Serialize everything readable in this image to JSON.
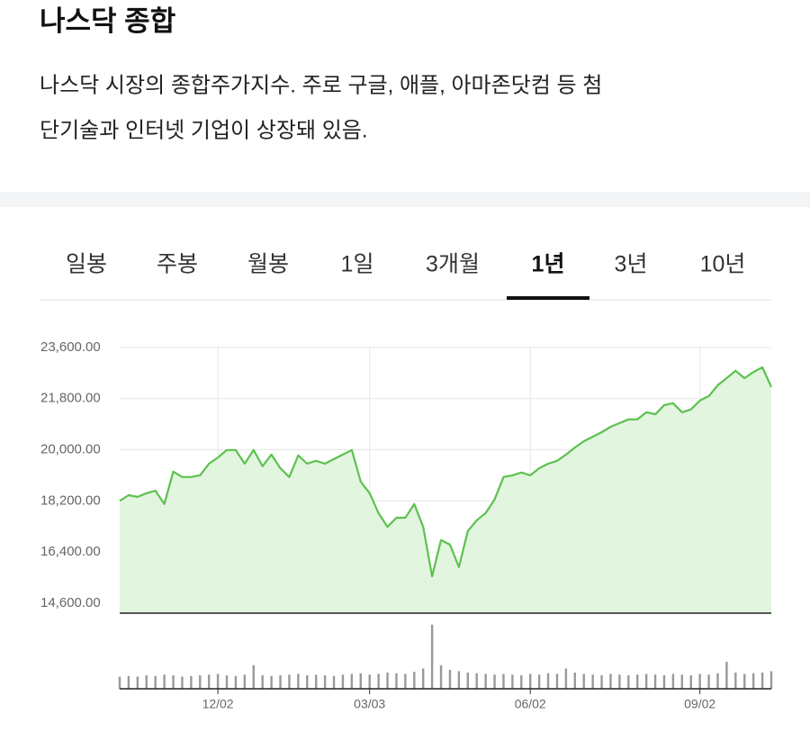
{
  "header": {
    "title": "나스닥 종합",
    "description": [
      "나스닥 시장의 종합주가지수. 주로 구글, 애플, 아마존닷컴 등 첨",
      "단기술과 인터넷 기업이 상장돼 있음."
    ]
  },
  "tabs": [
    "일봉",
    "주봉",
    "월봉",
    "1일",
    "3개월",
    "1년",
    "3년",
    "10년"
  ],
  "selected_tab": 5,
  "chart_data": {
    "type": "area",
    "color": "#5cc24e",
    "fill": "#e2f5df",
    "grid": true,
    "ylim": [
      14250,
      23800
    ],
    "yticks": [
      {
        "value": 14600,
        "label": "14,600.00"
      },
      {
        "value": 16400,
        "label": "16,400.00"
      },
      {
        "value": 18200,
        "label": "18,200.00"
      },
      {
        "value": 20000,
        "label": "20,000.00"
      },
      {
        "value": 21800,
        "label": "21,800.00"
      },
      {
        "value": 23600,
        "label": "23,600.00"
      }
    ],
    "categories": [
      null,
      null,
      null,
      null,
      null,
      null,
      null,
      null,
      null,
      null,
      null,
      "12/02",
      null,
      null,
      null,
      null,
      null,
      null,
      null,
      null,
      null,
      null,
      null,
      null,
      null,
      null,
      null,
      null,
      "03/03",
      null,
      null,
      null,
      null,
      null,
      null,
      null,
      null,
      null,
      null,
      null,
      null,
      null,
      null,
      null,
      null,
      null,
      "06/02",
      null,
      null,
      null,
      null,
      null,
      null,
      null,
      null,
      null,
      null,
      null,
      null,
      null,
      null,
      null,
      null,
      null,
      null,
      "09/02",
      null,
      null,
      null,
      null,
      null,
      null,
      null,
      null
    ],
    "values": [
      18200,
      18400,
      18340,
      18470,
      18560,
      18090,
      19230,
      19040,
      19040,
      19100,
      19510,
      19730,
      19990,
      19990,
      19510,
      19990,
      19420,
      19830,
      19350,
      19040,
      19800,
      19510,
      19610,
      19510,
      19670,
      19830,
      19990,
      18880,
      18470,
      17770,
      17290,
      17610,
      17610,
      18090,
      17290,
      15550,
      16820,
      16660,
      15870,
      17140,
      17520,
      17770,
      18250,
      19040,
      19100,
      19200,
      19100,
      19350,
      19510,
      19610,
      19830,
      20080,
      20300,
      20460,
      20620,
      20810,
      20940,
      21070,
      21070,
      21320,
      21250,
      21570,
      21640,
      21320,
      21420,
      21730,
      21890,
      22270,
      22520,
      22780,
      22520,
      22740,
      22900,
      22210
    ],
    "volume_ylim": [
      0,
      100
    ],
    "volume": [
      18,
      19,
      18,
      20,
      19,
      21,
      20,
      18,
      19,
      20,
      21,
      22,
      20,
      19,
      21,
      35,
      20,
      19,
      20,
      21,
      22,
      20,
      21,
      20,
      19,
      21,
      22,
      23,
      21,
      22,
      24,
      23,
      22,
      25,
      30,
      95,
      35,
      28,
      26,
      24,
      23,
      22,
      21,
      22,
      21,
      20,
      22,
      21,
      23,
      22,
      30,
      24,
      22,
      21,
      20,
      22,
      21,
      20,
      21,
      22,
      21,
      20,
      22,
      21,
      20,
      22,
      21,
      23,
      40,
      24,
      22,
      23,
      24,
      26
    ]
  }
}
